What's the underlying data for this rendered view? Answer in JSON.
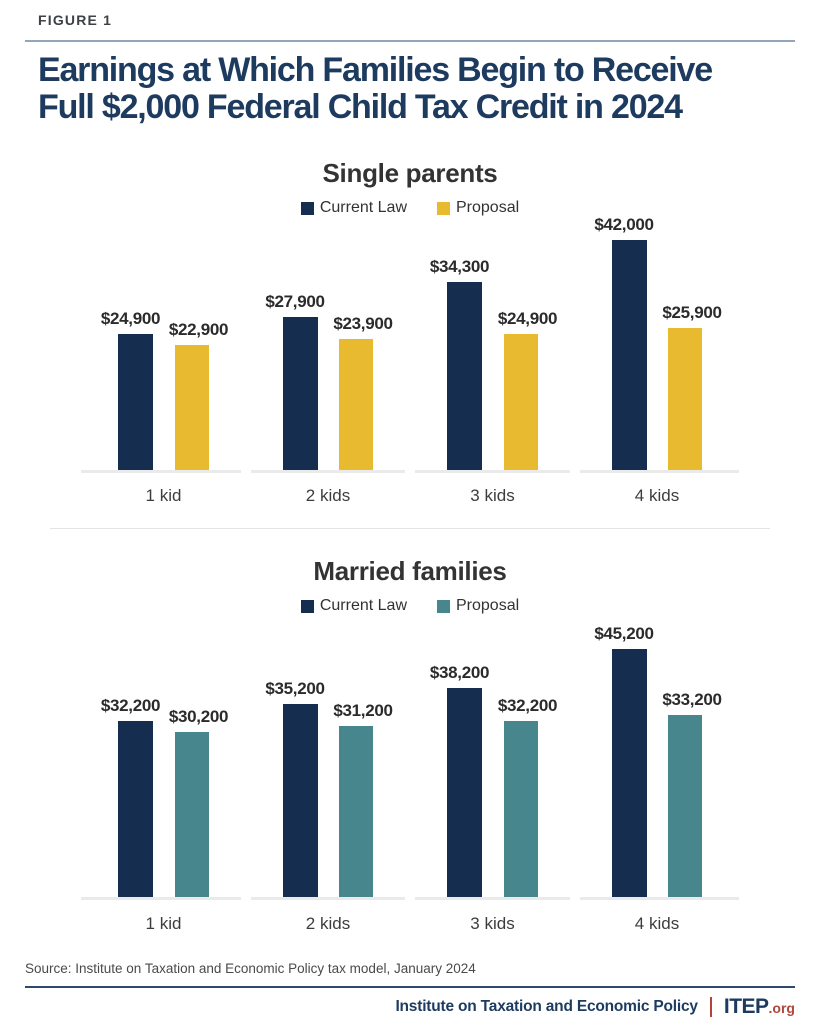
{
  "page": {
    "figure_label": "FIGURE 1",
    "title_line1": "Earnings at Which Families Begin to Receive",
    "title_line2": "Full $2,000 Federal Child Tax Credit in 2024",
    "source": "Source: Institute on Taxation and Economic Policy tax model, January 2024",
    "footer": {
      "org_name": "Institute on Taxation and Economic Policy",
      "logo_text": "ITEP",
      "logo_suffix": ".org"
    }
  },
  "colors": {
    "navy": "#152e4f",
    "gold": "#e8ba2f",
    "teal": "#47868c",
    "title_navy": "#1d3a5f",
    "footer_red": "#b2453a"
  },
  "chart_data": [
    {
      "type": "bar",
      "title": "Single parents",
      "categories": [
        "1 kid",
        "2 kids",
        "3 kids",
        "4 kids"
      ],
      "series": [
        {
          "name": "Current Law",
          "color": "#152e4f",
          "values": [
            24900,
            27900,
            34300,
            42000
          ]
        },
        {
          "name": "Proposal",
          "color": "#e8ba2f",
          "values": [
            22900,
            23900,
            24900,
            25900
          ]
        }
      ],
      "value_label_prefix": "$",
      "xlabel": "",
      "ylabel": "",
      "ylim": [
        0,
        48000
      ],
      "grid": false,
      "legend_position": "top"
    },
    {
      "type": "bar",
      "title": "Married families",
      "categories": [
        "1 kid",
        "2 kids",
        "3 kids",
        "4 kids"
      ],
      "series": [
        {
          "name": "Current Law",
          "color": "#152e4f",
          "values": [
            32200,
            35200,
            38200,
            45200
          ]
        },
        {
          "name": "Proposal",
          "color": "#47868c",
          "values": [
            30200,
            31200,
            32200,
            33200
          ]
        }
      ],
      "value_label_prefix": "$",
      "xlabel": "",
      "ylabel": "",
      "ylim": [
        0,
        48000
      ],
      "grid": false,
      "legend_position": "top"
    }
  ]
}
